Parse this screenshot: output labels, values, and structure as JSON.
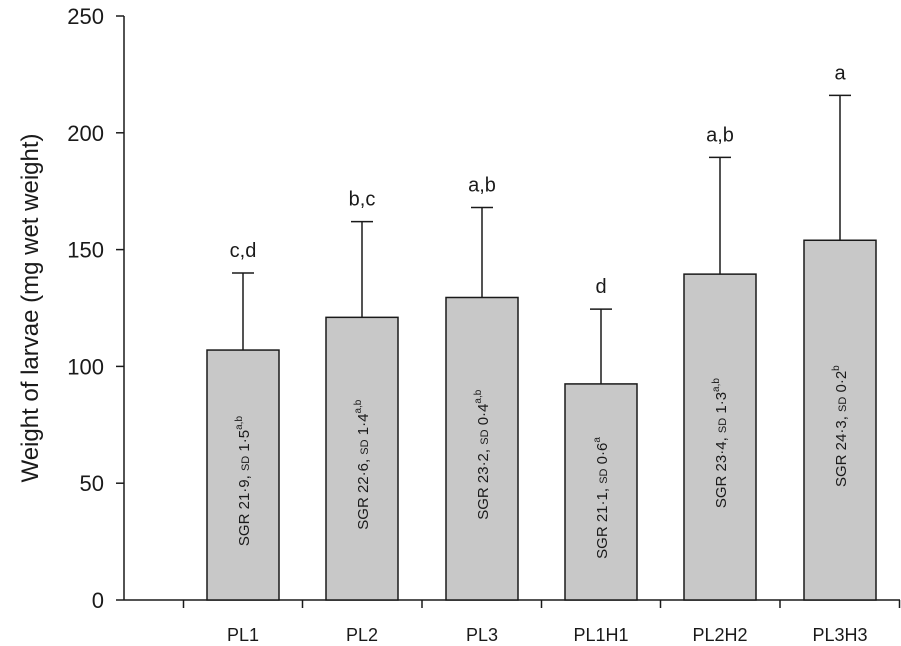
{
  "chart_data": {
    "type": "bar",
    "title": "",
    "xlabel": "",
    "ylabel": "Weight of larvae (mg wet weight)",
    "ylim": [
      0,
      250
    ],
    "yticks": [
      0,
      50,
      100,
      150,
      200,
      250
    ],
    "grid": false,
    "legend": "none",
    "categories": [
      "PL1",
      "PL2",
      "PL3",
      "PL1H1",
      "PL2H2",
      "PL3H3"
    ],
    "values": [
      107,
      121,
      129.5,
      92.5,
      139.5,
      154
    ],
    "error_upper": [
      140,
      162,
      168,
      124.5,
      189.5,
      216
    ],
    "significance": [
      "c,d",
      "b,c",
      "a,b",
      "d",
      "a,b",
      "a"
    ],
    "bar_labels": [
      {
        "prefix": "SGR 21·9, ",
        "sd": "SD",
        "value": " 1·5",
        "sup": "a,b"
      },
      {
        "prefix": "SGR 22·6, ",
        "sd": "SD",
        "value": " 1·4",
        "sup": "a,b"
      },
      {
        "prefix": "SGR 23·2, ",
        "sd": "SD",
        "value": " 0·4",
        "sup": "a,b"
      },
      {
        "prefix": "SGR 21·1, ",
        "sd": "SD",
        "value": " 0·6",
        "sup": "a"
      },
      {
        "prefix": "SGR 23·4, ",
        "sd": "SD",
        "value": " 1·3",
        "sup": "a,b"
      },
      {
        "prefix": "SGR 24·3, ",
        "sd": "SD",
        "value": " 0·2",
        "sup": "b"
      }
    ],
    "colors": {
      "bar_fill": "#c8c8c8",
      "stroke": "#1a1a1a"
    }
  }
}
